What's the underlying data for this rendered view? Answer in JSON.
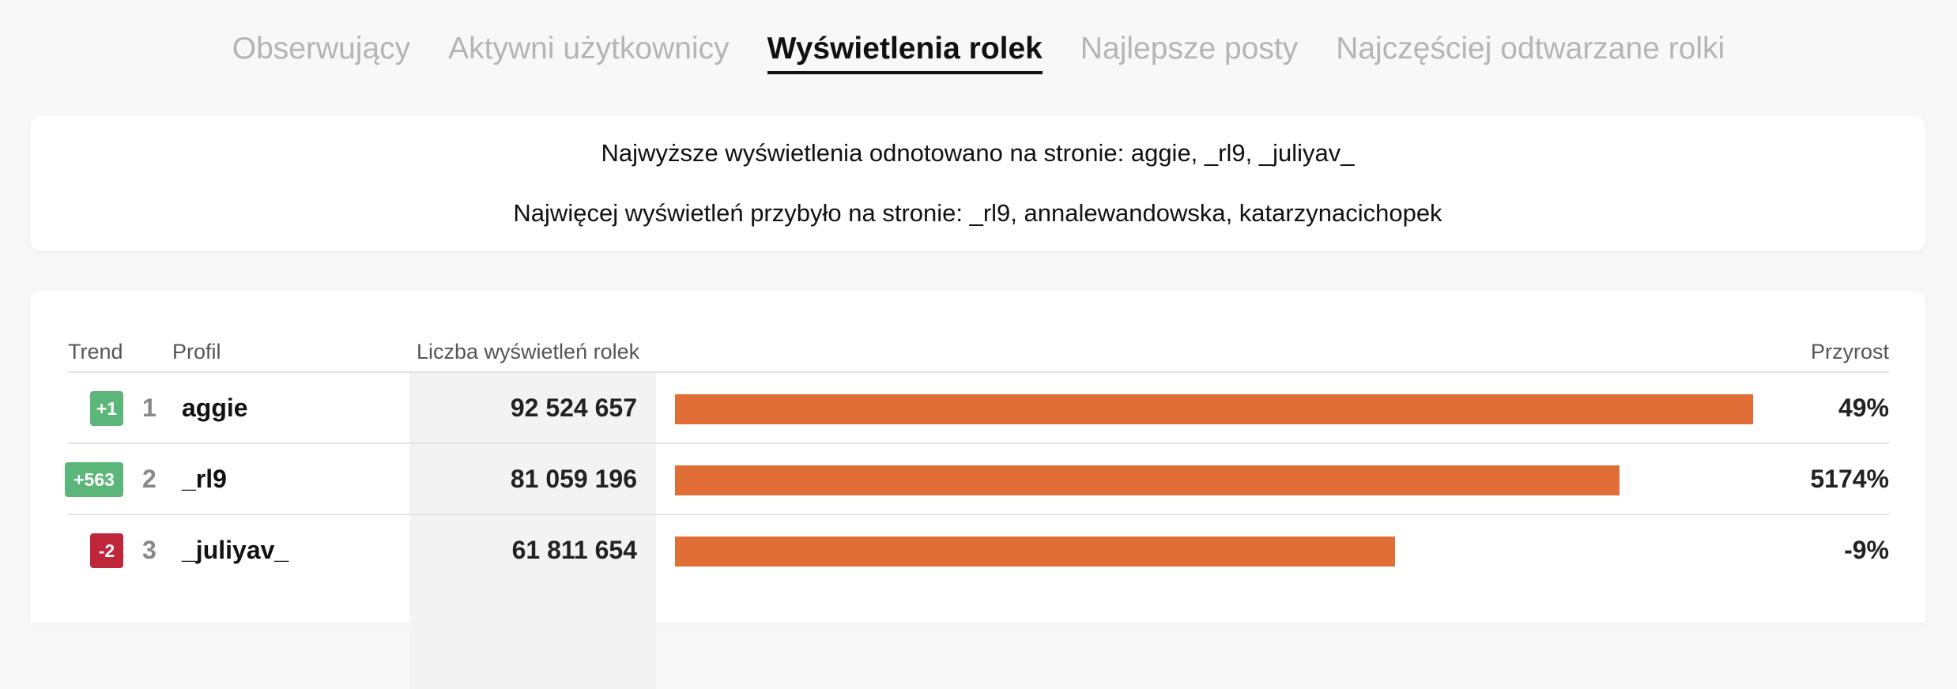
{
  "tabs": [
    {
      "label": "Obserwujący",
      "active": false
    },
    {
      "label": "Aktywni użytkownicy",
      "active": false
    },
    {
      "label": "Wyświetlenia rolek",
      "active": true
    },
    {
      "label": "Najlepsze posty",
      "active": false
    },
    {
      "label": "Najczęściej odtwarzane rolki",
      "active": false
    }
  ],
  "summary": {
    "line1": "Najwyższe wyświetlenia odnotowano na stronie: aggie, _rl9, _juliyav_",
    "line2": "Najwięcej wyświetleń przybyło na stronie: _rl9, annalewandowska, katarzynacichopek"
  },
  "table": {
    "headers": {
      "trend": "Trend",
      "profile": "Profil",
      "views": "Liczba wyświetleń rolek",
      "growth": "Przyrost"
    },
    "max_views": 92524657,
    "rows": [
      {
        "trend": "+1",
        "trend_dir": "up",
        "rank": "1",
        "name": "aggie",
        "views": "92 524 657",
        "views_value": 92524657,
        "growth": "49%"
      },
      {
        "trend": "+563",
        "trend_dir": "up",
        "rank": "2",
        "name": "_rl9",
        "views": "81 059 196",
        "views_value": 81059196,
        "growth": "5174%"
      },
      {
        "trend": "-2",
        "trend_dir": "down",
        "rank": "3",
        "name": "_juliyav_",
        "views": "61 811 654",
        "views_value": 61811654,
        "growth": "-9%"
      }
    ]
  },
  "colors": {
    "bar": "#e06e36",
    "trend_up": "#5cb67a",
    "trend_down": "#c0263a"
  }
}
